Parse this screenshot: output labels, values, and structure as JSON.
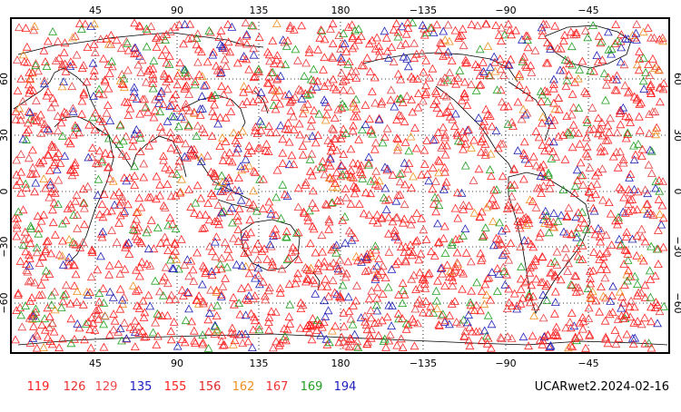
{
  "map": {
    "top_lon_labels": [
      "45",
      "90",
      "135",
      "180",
      "−135",
      "−90",
      "−45"
    ],
    "bottom_lon_labels": [
      "45",
      "90",
      "135",
      "180",
      "−135",
      "−90",
      "−45"
    ],
    "lat_labels": [
      "60",
      "30",
      "0",
      "−30",
      "−60"
    ],
    "grid": true,
    "marker": "triangle-icon"
  },
  "legend": [
    {
      "label": "119",
      "color": "#ff2020"
    },
    {
      "label": "126",
      "color": "#e83030"
    },
    {
      "label": "129",
      "color": "#f04848"
    },
    {
      "label": "135",
      "color": "#2020c0"
    },
    {
      "label": "155",
      "color": "#ff2020"
    },
    {
      "label": "156",
      "color": "#e02828"
    },
    {
      "label": "162",
      "color": "#f09020"
    },
    {
      "label": "167",
      "color": "#f03030"
    },
    {
      "label": "169",
      "color": "#20a020"
    },
    {
      "label": "194",
      "color": "#2020c0"
    }
  ],
  "caption": "UCARwet2.2024-02-16",
  "colors": {
    "red": "#ff2020",
    "red2": "#e84040",
    "blue": "#2020b8",
    "green": "#20a020",
    "orange": "#f09020",
    "frame": "#000000",
    "coast": "#000000",
    "grid": "#000000"
  }
}
